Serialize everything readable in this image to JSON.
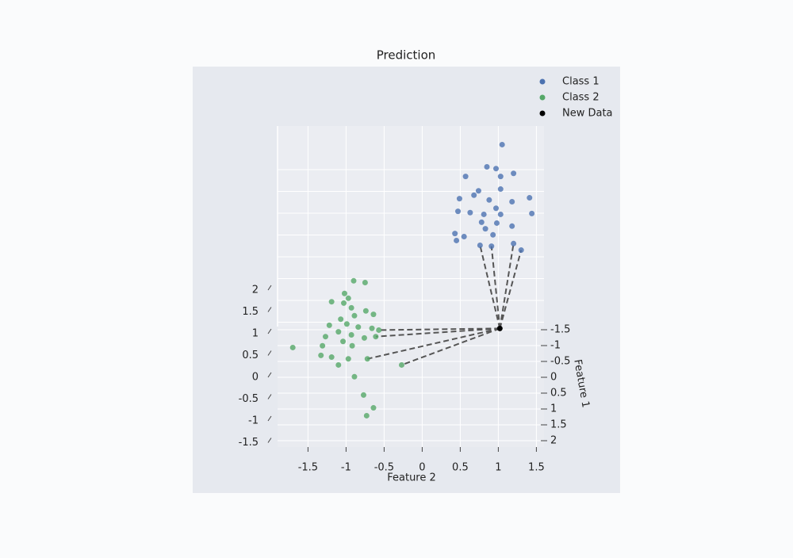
{
  "chart_data": {
    "type": "scatter3d",
    "title": "Prediction",
    "xlabel": "Feature 2",
    "ylabel": "Feature 1",
    "xlim": [
      -1.9,
      1.6
    ],
    "ylim": [
      -1.6,
      2.2
    ],
    "zlim": [
      -1.6,
      3.0
    ],
    "xticks": [
      -1.5,
      -1.0,
      -0.5,
      0.0,
      0.5,
      1.0,
      1.5
    ],
    "yticks": [
      -1.5,
      -1.0,
      -0.5,
      0.0,
      0.5,
      1.0,
      1.5,
      2.0
    ],
    "zticks": [
      -1.5,
      -1.0,
      -0.5,
      0.0,
      0.5,
      1.0,
      1.5,
      2.0
    ],
    "grid": true,
    "legend": "upper right",
    "series": [
      {
        "name": "Class 1",
        "color": "#4c72b0",
        "x": [
          1.05,
          0.85,
          0.97,
          1.2,
          0.57,
          1.03,
          0.74,
          1.03,
          0.68,
          0.49,
          0.88,
          1.41,
          1.18,
          0.97,
          0.47,
          0.63,
          0.81,
          1.03,
          1.44,
          0.78,
          0.98,
          1.18,
          0.43,
          0.83,
          0.93,
          0.55,
          0.45,
          0.76,
          1.2,
          0.91,
          1.3
        ],
        "y": [
          -1,
          -1,
          -1,
          -1,
          -1,
          -1,
          -1,
          -1,
          -1,
          -1,
          -1,
          -1,
          -1,
          -1,
          -1,
          -1,
          -1,
          -1,
          -1,
          -1,
          -1,
          -1,
          -1,
          -1,
          -1,
          -1,
          -1,
          -1,
          -1,
          -1,
          -1
        ],
        "z": [
          3.01,
          2.5,
          2.46,
          2.35,
          2.28,
          2.28,
          1.95,
          1.99,
          1.85,
          1.77,
          1.74,
          1.79,
          1.7,
          1.55,
          1.48,
          1.45,
          1.41,
          1.41,
          1.43,
          1.23,
          1.21,
          1.14,
          0.97,
          1.08,
          0.94,
          0.9,
          0.81,
          0.7,
          0.74,
          0.68,
          0.59
        ]
      },
      {
        "name": "Class 2",
        "color": "#55a868",
        "x": [
          -0.9,
          -0.75,
          -1.02,
          -0.97,
          -1.19,
          -1.03,
          -0.93,
          -0.74,
          -0.89,
          -1.07,
          -0.64,
          -1.22,
          -0.99,
          -0.84,
          -0.66,
          -0.57,
          -1.1,
          -0.93,
          -1.27,
          -0.76,
          -1.04,
          -0.61,
          -1.7,
          -1.31,
          -0.92,
          -1.33,
          -1.19,
          -0.97,
          -0.72,
          -1.1,
          -0.27,
          -0.89,
          -0.77,
          -0.64,
          -0.73
        ],
        "y": [
          1,
          1,
          1,
          1,
          1,
          1,
          1,
          1,
          1,
          1,
          1,
          1,
          1,
          1,
          1,
          1,
          1,
          1,
          1,
          1,
          1,
          1,
          1,
          1,
          1,
          1,
          1,
          1,
          1,
          1,
          1,
          1,
          1,
          1.5,
          1.5
        ],
        "z": [
          1.34,
          1.3,
          1.05,
          0.94,
          0.86,
          0.83,
          0.72,
          0.65,
          0.54,
          0.46,
          0.57,
          0.32,
          0.35,
          0.28,
          0.25,
          0.21,
          0.17,
          0.1,
          0.06,
          0.03,
          -0.05,
          0.06,
          -0.19,
          -0.15,
          -0.15,
          -0.37,
          -0.41,
          -0.45,
          -0.45,
          -0.59,
          -0.59,
          -0.86,
          -1.28,
          -1.21,
          -1.39
        ]
      },
      {
        "name": "New Data",
        "color": "#000000",
        "x": [
          1.02
        ],
        "y": [
          0
        ],
        "z": [
          -0.48
        ]
      }
    ]
  }
}
